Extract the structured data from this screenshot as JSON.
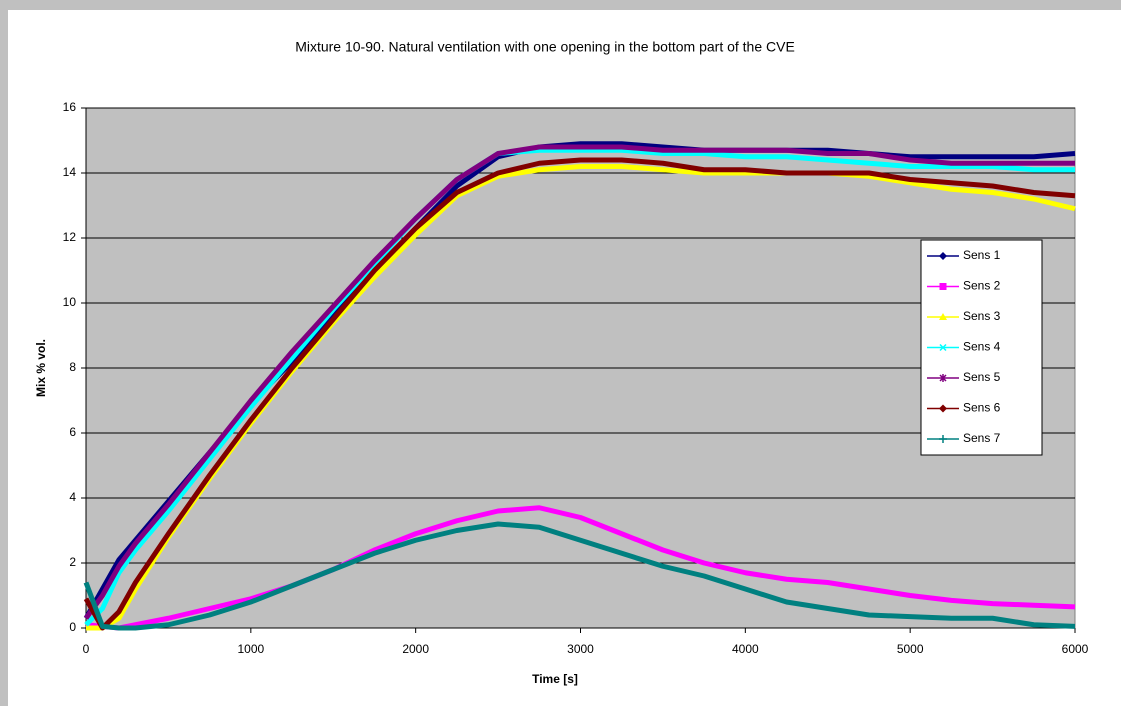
{
  "chart_data": {
    "type": "line",
    "title": "Mixture 10-90. Natural ventilation with one opening in the bottom part of the CVE",
    "xlabel": "Time [s]",
    "ylabel": "Mix % vol.",
    "x": [
      0,
      100,
      200,
      300,
      500,
      750,
      1000,
      1250,
      1500,
      1750,
      2000,
      2250,
      2500,
      2750,
      3000,
      3250,
      3500,
      3750,
      4000,
      4250,
      4500,
      4750,
      5000,
      5250,
      5500,
      5750,
      6000
    ],
    "series": [
      {
        "name": "Sens 1",
        "color": "#000080",
        "marker": "diamond",
        "values": [
          0.3,
          1.2,
          2.1,
          2.7,
          3.9,
          5.4,
          6.9,
          8.2,
          9.6,
          11.0,
          12.3,
          13.6,
          14.5,
          14.8,
          14.9,
          14.9,
          14.8,
          14.7,
          14.7,
          14.7,
          14.7,
          14.6,
          14.5,
          14.5,
          14.5,
          14.5,
          14.6
        ]
      },
      {
        "name": "Sens 2",
        "color": "#ff00ff",
        "marker": "square",
        "values": [
          0.1,
          0.05,
          0,
          0.1,
          0.3,
          0.6,
          0.9,
          1.3,
          1.8,
          2.4,
          2.9,
          3.3,
          3.6,
          3.7,
          3.4,
          2.9,
          2.4,
          2.0,
          1.7,
          1.5,
          1.4,
          1.2,
          1.0,
          0.85,
          0.75,
          0.7,
          0.65
        ]
      },
      {
        "name": "Sens 3",
        "color": "#ffff00",
        "marker": "triangle",
        "values": [
          0,
          0,
          0.3,
          1.2,
          2.8,
          4.6,
          6.3,
          7.9,
          9.4,
          10.8,
          12.1,
          13.3,
          13.9,
          14.1,
          14.2,
          14.2,
          14.1,
          14.0,
          14.0,
          14.0,
          14.0,
          13.9,
          13.7,
          13.5,
          13.4,
          13.2,
          12.9
        ]
      },
      {
        "name": "Sens 4",
        "color": "#00ffff",
        "marker": "x",
        "values": [
          0.1,
          0.6,
          1.7,
          2.4,
          3.6,
          5.2,
          6.8,
          8.3,
          9.8,
          11.2,
          12.6,
          13.8,
          14.6,
          14.7,
          14.7,
          14.7,
          14.6,
          14.6,
          14.5,
          14.5,
          14.4,
          14.3,
          14.2,
          14.2,
          14.2,
          14.1,
          14.1
        ]
      },
      {
        "name": "Sens 5",
        "color": "#800080",
        "marker": "star",
        "values": [
          0.3,
          1.0,
          1.9,
          2.6,
          3.8,
          5.4,
          7.0,
          8.5,
          9.9,
          11.3,
          12.6,
          13.8,
          14.6,
          14.8,
          14.8,
          14.8,
          14.7,
          14.7,
          14.7,
          14.7,
          14.6,
          14.6,
          14.4,
          14.3,
          14.3,
          14.3,
          14.3
        ]
      },
      {
        "name": "Sens 6",
        "color": "#800000",
        "marker": "diamond",
        "values": [
          0.9,
          0,
          0.5,
          1.4,
          2.9,
          4.7,
          6.4,
          8.0,
          9.5,
          11.0,
          12.3,
          13.4,
          14.0,
          14.3,
          14.4,
          14.4,
          14.3,
          14.1,
          14.1,
          14.0,
          14.0,
          14.0,
          13.8,
          13.7,
          13.6,
          13.4,
          13.3
        ]
      },
      {
        "name": "Sens 7",
        "color": "#008080",
        "marker": "plus",
        "values": [
          1.4,
          0.05,
          0,
          0,
          0.1,
          0.4,
          0.8,
          1.3,
          1.8,
          2.3,
          2.7,
          3.0,
          3.2,
          3.1,
          2.7,
          2.3,
          1.9,
          1.6,
          1.2,
          0.8,
          0.6,
          0.4,
          0.35,
          0.3,
          0.3,
          0.1,
          0.05
        ]
      }
    ],
    "xlim": [
      0,
      6000
    ],
    "xticks": [
      0,
      1000,
      2000,
      3000,
      4000,
      5000,
      6000
    ],
    "ylim": [
      0,
      16
    ],
    "yticks": [
      0,
      2,
      4,
      6,
      8,
      10,
      12,
      14,
      16
    ],
    "grid": true,
    "legend": "right",
    "plot_background": "#c0c0c0"
  }
}
